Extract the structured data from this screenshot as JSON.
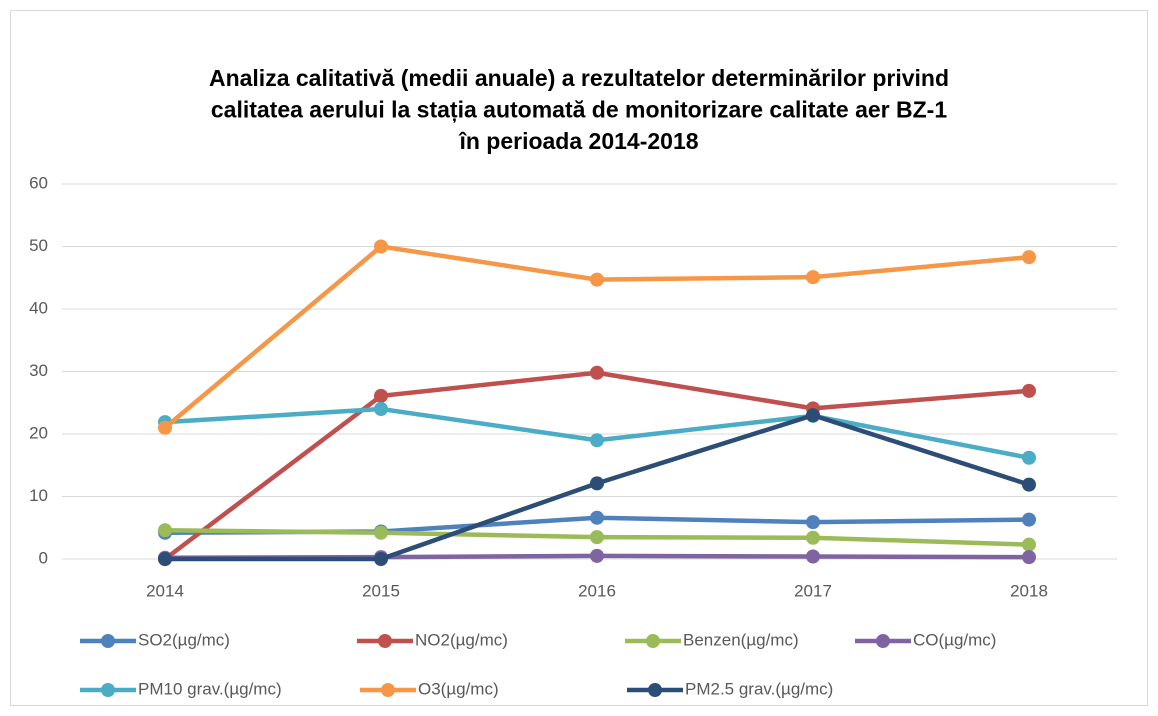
{
  "chart_data": {
    "type": "line",
    "title": [
      "Analiza calitativă (medii anuale) a rezultatelor determinărilor privind",
      "calitatea aerului la stația automată de monitorizare calitate aer BZ-1",
      "în perioada 2014-2018"
    ],
    "categories": [
      "2014",
      "2015",
      "2016",
      "2017",
      "2018"
    ],
    "series": [
      {
        "name": "SO2(µg/mc)",
        "color": "#4f81bd",
        "values": [
          4.2,
          4.4,
          6.6,
          5.9,
          6.3
        ]
      },
      {
        "name": "NO2(µg/mc)",
        "color": "#c0504d",
        "values": [
          0,
          26.1,
          29.8,
          24.1,
          26.9
        ]
      },
      {
        "name": "Benzen(µg/mc)",
        "color": "#9bbb59",
        "values": [
          4.6,
          4.2,
          3.5,
          3.4,
          2.3
        ]
      },
      {
        "name": "CO(µg/mc)",
        "color": "#8064a2",
        "values": [
          0.2,
          0.3,
          0.5,
          0.4,
          0.3
        ]
      },
      {
        "name": "PM10 grav.(µg/mc)",
        "color": "#4bacc6",
        "values": [
          21.9,
          24,
          19,
          22.9,
          16.2
        ]
      },
      {
        "name": "O3(µg/mc)",
        "color": "#f79646",
        "values": [
          21,
          50,
          44.7,
          45.1,
          48.3
        ]
      },
      {
        "name": "PM2.5 grav.(µg/mc)",
        "color": "#2c4d75",
        "values": [
          0,
          0,
          12.1,
          23,
          11.9
        ]
      }
    ],
    "ylim": [
      0,
      60
    ],
    "yticks": [
      0,
      10,
      20,
      30,
      40,
      50,
      60
    ],
    "grid": true,
    "legend": "bottom"
  }
}
